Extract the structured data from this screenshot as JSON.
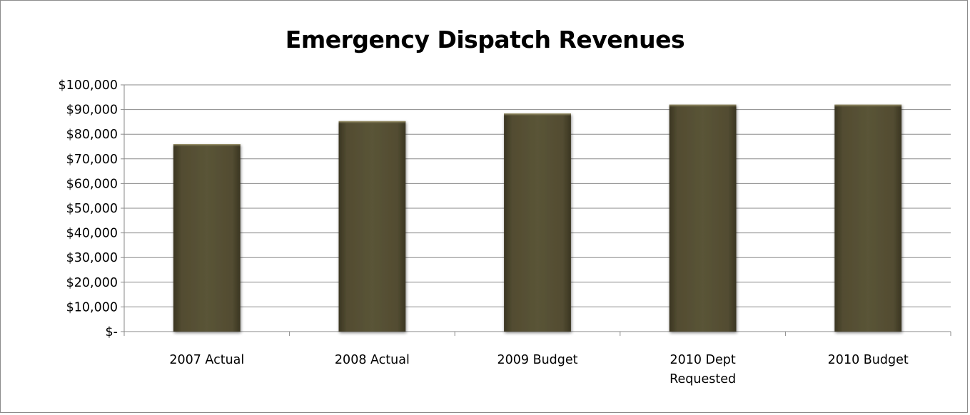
{
  "chart_data": {
    "type": "bar",
    "title": "Emergency Dispatch Revenues",
    "xlabel": "",
    "ylabel": "",
    "categories": [
      [
        "2007 Actual"
      ],
      [
        "2008 Actual"
      ],
      [
        "2009 Budget"
      ],
      [
        "2010 Dept",
        "Requested"
      ],
      [
        "2010 Budget"
      ]
    ],
    "values": [
      76000,
      85300,
      88400,
      92000,
      92000
    ],
    "ylim": [
      0,
      100000
    ],
    "yticks": [
      0,
      10000,
      20000,
      30000,
      40000,
      50000,
      60000,
      70000,
      80000,
      90000,
      100000
    ],
    "ytick_labels": [
      "$-",
      "$10,000",
      "$20,000",
      "$30,000",
      "$40,000",
      "$50,000",
      "$60,000",
      "$70,000",
      "$80,000",
      "$90,000",
      "$100,000"
    ],
    "grid": true,
    "legend": "none",
    "bar_color": "#554f33"
  }
}
